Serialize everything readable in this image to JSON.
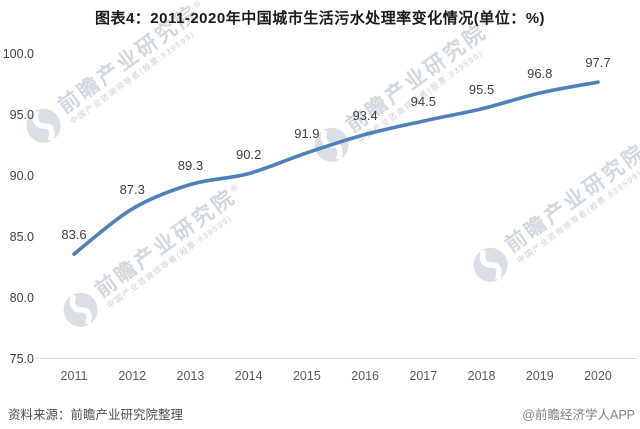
{
  "header": {
    "title": "图表4：2011-2020年中国城市生活污水处理率变化情况(单位：%)"
  },
  "chart_data": {
    "type": "line",
    "title": "图表4：2011-2020年中国城市生活污水处理率变化情况(单位：%)",
    "categories": [
      "2011",
      "2012",
      "2013",
      "2014",
      "2015",
      "2016",
      "2017",
      "2018",
      "2019",
      "2020"
    ],
    "values": [
      83.6,
      87.3,
      89.3,
      90.2,
      91.9,
      93.4,
      94.5,
      95.5,
      96.8,
      97.7
    ],
    "yticks": [
      "100.0",
      "95.0",
      "90.0",
      "85.0",
      "80.0",
      "75.0"
    ],
    "ylim": [
      75.0,
      100.0
    ],
    "xlabel": "",
    "ylabel": "",
    "grid": false,
    "legend": "none",
    "line_color": "#4E81BC",
    "axis_line_color": "#D9D9D9",
    "data_label_color": "#404040"
  },
  "watermark": {
    "brand": "前瞻产业研究院",
    "reg": "®",
    "tagline": "中国产业咨询领导者(股票:839599)"
  },
  "footer": {
    "source": "资料来源：前瞻产业研究院整理",
    "credit": "@前瞻经济学人APP"
  }
}
